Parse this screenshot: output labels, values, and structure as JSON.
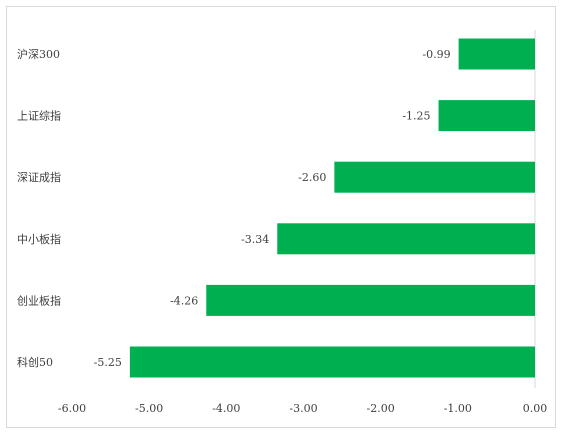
{
  "chart_data": {
    "type": "bar",
    "orientation": "horizontal",
    "categories": [
      "沪深300",
      "上证综指",
      "深证成指",
      "中小板指",
      "创业板指",
      "科创50"
    ],
    "values": [
      -0.99,
      -1.25,
      -2.6,
      -3.34,
      -4.26,
      -5.25
    ],
    "value_labels": [
      "-0.99",
      "-1.25",
      "-2.60",
      "-3.34",
      "-4.26",
      "-5.25"
    ],
    "xlim": [
      -6.0,
      0.0
    ],
    "x_ticks": [
      -6.0,
      -5.0,
      -4.0,
      -3.0,
      -2.0,
      -1.0,
      0.0
    ],
    "x_tick_labels": [
      "-6.00",
      "-5.00",
      "-4.00",
      "-3.00",
      "-2.00",
      "-1.00",
      "0.00"
    ],
    "title": "",
    "xlabel": "",
    "ylabel": "",
    "grid": false,
    "legend": "none",
    "bar_color": "#00b050",
    "axis_color": "#d9d9d9",
    "text_color": "#404040"
  }
}
